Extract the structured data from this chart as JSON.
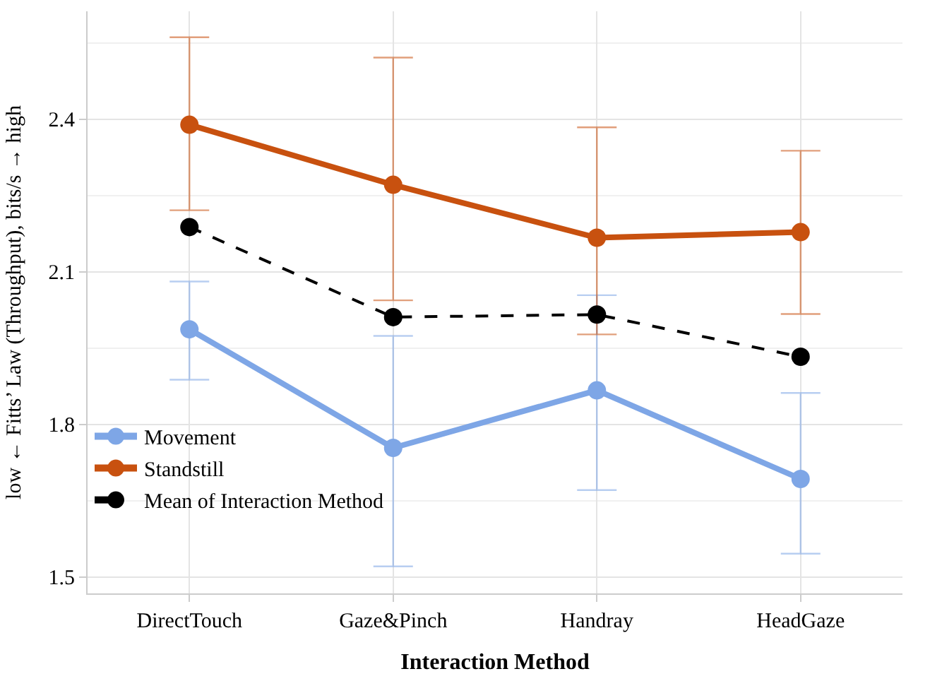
{
  "chart_data": {
    "type": "line",
    "xlabel": "Interaction Method",
    "ylabel": "low ← Fitts’ Law (Throughput), bits/s → high",
    "categories": [
      "DirectTouch",
      "Gaze&Pinch",
      "Handray",
      "HeadGaze"
    ],
    "series": [
      {
        "name": "Movement",
        "color": "#7ea6e6",
        "values": [
          1.987,
          1.754,
          1.867,
          1.693
        ],
        "errors": [
          [
            1.888,
            2.081
          ],
          [
            1.521,
            1.974
          ],
          [
            1.671,
            2.054
          ],
          [
            1.546,
            1.862
          ]
        ],
        "line_style": "solid"
      },
      {
        "name": "Standstill",
        "color": "#c8510f",
        "values": [
          2.389,
          2.271,
          2.167,
          2.178
        ],
        "errors": [
          [
            2.221,
            2.561
          ],
          [
            2.044,
            2.521
          ],
          [
            1.977,
            2.384
          ],
          [
            2.017,
            2.338
          ]
        ],
        "line_style": "solid"
      },
      {
        "name": "Mean of Interaction Method",
        "color": "#000000",
        "values": [
          2.188,
          2.011,
          2.016,
          1.933
        ],
        "line_style": "dashed"
      }
    ],
    "ylim": [
      1.468,
      2.612
    ],
    "yticks": [
      1.5,
      1.8,
      2.1,
      2.4
    ],
    "grid": true,
    "legend": "bottom left",
    "marker": "circle"
  }
}
